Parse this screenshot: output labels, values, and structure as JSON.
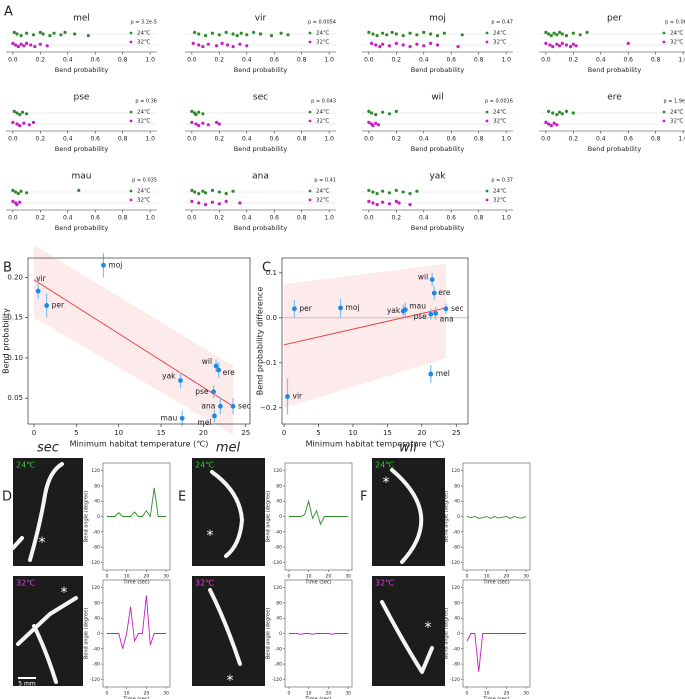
{
  "panel_labels": [
    "A",
    "B",
    "C",
    "D",
    "E",
    "F"
  ],
  "images": [
    {
      "title": "sec",
      "conditions": [
        {
          "label": "24℃",
          "marker": "*"
        },
        {
          "label": "32℃",
          "marker": "*"
        }
      ]
    },
    {
      "title": "mel",
      "conditions": [
        {
          "label": "24℃",
          "marker": "*"
        },
        {
          "label": "32℃",
          "marker": "*"
        }
      ]
    },
    {
      "title": "wil",
      "conditions": [
        {
          "label": "24℃",
          "marker": "*"
        },
        {
          "label": "32℃",
          "marker": "*"
        }
      ]
    }
  ],
  "scale_bar": "5 mm",
  "chart_data": [
    {
      "type": "strip",
      "title": "mel",
      "annotation": "p = 3.2e-5",
      "xlabel": "Bend probability",
      "xlim": [
        -0.05,
        1.05
      ],
      "xticks": [
        {
          "value": 0,
          "label": "0.0"
        },
        0.2,
        0.4,
        0.6,
        0.8,
        {
          "value": 1,
          "label": "1.0"
        }
      ],
      "series": [
        {
          "name": "24℃",
          "color": "#2e8b2e",
          "values": [
            0.01,
            0.03,
            0.06,
            0.1,
            0.15,
            0.2,
            0.22,
            0.27,
            0.3,
            0.35,
            0.38,
            0.45,
            0.55
          ]
        },
        {
          "name": "32℃",
          "color": "#c41ec4",
          "values": [
            0.0,
            0.02,
            0.04,
            0.06,
            0.08,
            0.1,
            0.13,
            0.16,
            0.2,
            0.25
          ]
        }
      ]
    },
    {
      "type": "strip",
      "title": "vir",
      "annotation": "p = 0.0054",
      "xlabel": "Bend probability",
      "xlim": [
        -0.05,
        1.05
      ],
      "xticks": [
        {
          "value": 0,
          "label": "0.0"
        },
        0.2,
        0.4,
        0.6,
        0.8,
        {
          "value": 1,
          "label": "1.0"
        }
      ],
      "series": [
        {
          "name": "24℃",
          "color": "#2e8b2e",
          "values": [
            0.02,
            0.05,
            0.1,
            0.15,
            0.2,
            0.25,
            0.3,
            0.33,
            0.36,
            0.4,
            0.45,
            0.5,
            0.58,
            0.65,
            0.7
          ]
        },
        {
          "name": "32℃",
          "color": "#c41ec4",
          "values": [
            0.01,
            0.05,
            0.08,
            0.12,
            0.18,
            0.22,
            0.26,
            0.3,
            0.35,
            0.4
          ]
        }
      ]
    },
    {
      "type": "strip",
      "title": "moj",
      "annotation": "p = 0.47",
      "xlabel": "Bend probability",
      "xlim": [
        -0.05,
        1.05
      ],
      "xticks": [
        {
          "value": 0,
          "label": "0.0"
        },
        0.2,
        0.4,
        0.6,
        0.8,
        {
          "value": 1,
          "label": "1.0"
        }
      ],
      "series": [
        {
          "name": "24℃",
          "color": "#2e8b2e",
          "values": [
            0.0,
            0.03,
            0.06,
            0.1,
            0.13,
            0.17,
            0.2,
            0.25,
            0.3,
            0.35,
            0.4,
            0.45,
            0.5,
            0.55,
            0.68
          ]
        },
        {
          "name": "32℃",
          "color": "#c41ec4",
          "values": [
            0.02,
            0.05,
            0.08,
            0.1,
            0.15,
            0.2,
            0.25,
            0.3,
            0.35,
            0.4,
            0.45,
            0.5,
            0.65
          ]
        }
      ]
    },
    {
      "type": "strip",
      "title": "per",
      "annotation": "p = 0.066",
      "xlabel": "Bend probability",
      "xlim": [
        -0.05,
        1.05
      ],
      "xticks": [
        {
          "value": 0,
          "label": "0.0"
        },
        0.2,
        0.4,
        0.6,
        0.8,
        {
          "value": 1,
          "label": "1.0"
        }
      ],
      "series": [
        {
          "name": "24℃",
          "color": "#2e8b2e",
          "values": [
            0.0,
            0.02,
            0.04,
            0.06,
            0.08,
            0.1,
            0.12,
            0.15,
            0.2,
            0.25,
            0.3
          ]
        },
        {
          "name": "32℃",
          "color": "#c41ec4",
          "values": [
            0.0,
            0.03,
            0.05,
            0.08,
            0.1,
            0.12,
            0.15,
            0.18,
            0.2,
            0.22,
            0.6
          ]
        }
      ]
    },
    {
      "type": "strip",
      "title": "pse",
      "annotation": "p = 0.36",
      "xlabel": "Bend probability",
      "xlim": [
        -0.05,
        1.05
      ],
      "xticks": [
        {
          "value": 0,
          "label": "0.0"
        },
        0.2,
        0.4,
        0.6,
        0.8,
        {
          "value": 1,
          "label": "1.0"
        }
      ],
      "series": [
        {
          "name": "24℃",
          "color": "#2e8b2e",
          "values": [
            0.01,
            0.03,
            0.05,
            0.07,
            0.1
          ]
        },
        {
          "name": "32℃",
          "color": "#c41ec4",
          "values": [
            0.0,
            0.03,
            0.05,
            0.08,
            0.12,
            0.15
          ]
        }
      ]
    },
    {
      "type": "strip",
      "title": "sec",
      "annotation": "p = 0.043",
      "xlabel": "Bend probability",
      "xlim": [
        -0.05,
        1.05
      ],
      "xticks": [
        {
          "value": 0,
          "label": "0.0"
        },
        0.2,
        0.4,
        0.6,
        0.8,
        {
          "value": 1,
          "label": "1.0"
        }
      ],
      "series": [
        {
          "name": "24℃",
          "color": "#2e8b2e",
          "values": [
            0.0,
            0.02,
            0.03,
            0.05,
            0.08
          ]
        },
        {
          "name": "32℃",
          "color": "#c41ec4",
          "values": [
            0.0,
            0.03,
            0.05,
            0.08,
            0.12,
            0.18,
            0.2
          ]
        }
      ]
    },
    {
      "type": "strip",
      "title": "wil",
      "annotation": "p = 0.0016",
      "xlabel": "Bend probability",
      "xlim": [
        -0.05,
        1.05
      ],
      "xticks": [
        {
          "value": 0,
          "label": "0.0"
        },
        0.2,
        0.4,
        0.6,
        0.8,
        {
          "value": 1,
          "label": "1.0"
        }
      ],
      "series": [
        {
          "name": "24℃",
          "color": "#2e8b2e",
          "values": [
            0.0,
            0.02,
            0.05,
            0.1,
            0.15,
            0.2
          ]
        },
        {
          "name": "32℃",
          "color": "#c41ec4",
          "values": [
            0.0,
            0.02,
            0.03,
            0.05,
            0.07
          ]
        }
      ]
    },
    {
      "type": "strip",
      "title": "ere",
      "annotation": "p = 1.9e-5",
      "xlabel": "Bend probability",
      "xlim": [
        -0.05,
        1.05
      ],
      "xticks": [
        {
          "value": 0,
          "label": "0.0"
        },
        0.2,
        0.4,
        0.6,
        0.8,
        {
          "value": 1,
          "label": "1.0"
        }
      ],
      "series": [
        {
          "name": "24℃",
          "color": "#2e8b2e",
          "values": [
            0.02,
            0.05,
            0.08,
            0.1,
            0.12,
            0.15,
            0.2
          ]
        },
        {
          "name": "32℃",
          "color": "#c41ec4",
          "values": [
            0.0,
            0.02,
            0.04,
            0.06,
            0.08
          ]
        }
      ]
    },
    {
      "type": "strip",
      "title": "mau",
      "annotation": "p = 0.035",
      "xlabel": "Bend probability",
      "xlim": [
        -0.05,
        1.05
      ],
      "xticks": [
        {
          "value": 0,
          "label": "0.0"
        },
        0.2,
        0.4,
        0.6,
        0.8,
        {
          "value": 1,
          "label": "1.0"
        }
      ],
      "series": [
        {
          "name": "24℃",
          "color": "#2e8b2e",
          "values": [
            0.0,
            0.02,
            0.04,
            0.06,
            0.1,
            0.48
          ]
        },
        {
          "name": "32℃",
          "color": "#c41ec4",
          "values": [
            0.0,
            0.02,
            0.03,
            0.05
          ]
        }
      ]
    },
    {
      "type": "strip",
      "title": "ana",
      "annotation": "p = 0.41",
      "xlabel": "Bend probability",
      "xlim": [
        -0.05,
        1.05
      ],
      "xticks": [
        {
          "value": 0,
          "label": "0.0"
        },
        0.2,
        0.4,
        0.6,
        0.8,
        {
          "value": 1,
          "label": "1.0"
        }
      ],
      "series": [
        {
          "name": "24℃",
          "color": "#2e8b2e",
          "values": [
            0.0,
            0.02,
            0.05,
            0.08,
            0.1,
            0.15,
            0.2,
            0.25,
            0.3
          ]
        },
        {
          "name": "32℃",
          "color": "#c41ec4",
          "values": [
            0.0,
            0.05,
            0.1,
            0.15,
            0.2,
            0.25,
            0.35
          ]
        }
      ]
    },
    {
      "type": "strip",
      "title": "yak",
      "annotation": "p = 0.37",
      "xlabel": "Bend probability",
      "xlim": [
        -0.05,
        1.05
      ],
      "xticks": [
        {
          "value": 0,
          "label": "0.0"
        },
        0.2,
        0.4,
        0.6,
        0.8,
        {
          "value": 1,
          "label": "1.0"
        }
      ],
      "series": [
        {
          "name": "24℃",
          "color": "#2e8b2e",
          "values": [
            0.0,
            0.03,
            0.06,
            0.1,
            0.15,
            0.2,
            0.25,
            0.3,
            0.35
          ]
        },
        {
          "name": "32℃",
          "color": "#c41ec4",
          "values": [
            0.0,
            0.03,
            0.06,
            0.1,
            0.15,
            0.2,
            0.22,
            0.3
          ]
        }
      ]
    },
    {
      "type": "scatter",
      "xlabel": "Minimum habitat temperature (℃)",
      "ylabel": "Bend probability",
      "labels": [
        "vir",
        "per",
        "moj",
        "yak",
        "mau",
        "wil",
        "ere",
        "pse",
        "ana",
        "mel",
        "sec"
      ],
      "x": [
        0.5,
        1.5,
        8.2,
        17.3,
        17.5,
        21.5,
        21.8,
        21.2,
        22,
        21.3,
        23.5
      ],
      "values": [
        0.183,
        0.165,
        0.215,
        0.072,
        0.025,
        0.09,
        0.085,
        0.058,
        0.04,
        0.028,
        0.04
      ],
      "errors": [
        0.01,
        0.015,
        0.015,
        0.01,
        0.01,
        0.008,
        0.01,
        0.008,
        0.01,
        0.008,
        0.01
      ],
      "color": "#1e88e5",
      "error_color": "#7fc0f0",
      "fit": {
        "x": [
          0,
          23.5
        ],
        "values": [
          0.197,
          0.04
        ],
        "color": "#e53935"
      },
      "band": {
        "x": [
          0,
          23.5
        ],
        "upper": [
          0.24,
          0.09
        ],
        "lower": [
          0.15,
          0.005
        ],
        "color": "#fdeaea"
      },
      "xlim": [
        -0.7,
        25.5
      ],
      "ylim": [
        0.018,
        0.224
      ],
      "xticks": [
        0,
        5,
        10,
        15,
        20,
        25
      ],
      "yticks": [
        0.05,
        {
          "value": 0.1,
          "label": "0.10"
        },
        0.15,
        {
          "value": 0.2,
          "label": "0.20"
        }
      ]
    },
    {
      "type": "scatter",
      "xlabel": "Minimum habitat temperature (℃)",
      "ylabel": "Bend probability difference",
      "labels": [
        "vir",
        "per",
        "moj",
        "yak",
        "mau",
        "wil",
        "ere",
        "pse",
        "ana",
        "mel",
        "sec"
      ],
      "x": [
        0.5,
        1.5,
        8.2,
        17.3,
        17.6,
        21.5,
        21.8,
        21.3,
        22,
        21.3,
        23.5
      ],
      "values": [
        -0.175,
        0.02,
        0.022,
        0.015,
        0.018,
        0.085,
        0.055,
        0.008,
        0.01,
        -0.125,
        0.02
      ],
      "errors": [
        0.04,
        0.02,
        0.02,
        0.015,
        0.015,
        0.015,
        0.015,
        0.012,
        0.015,
        0.02,
        0.012
      ],
      "color": "#1e88e5",
      "error_color": "#7fc0f0",
      "fit": {
        "x": [
          0,
          23.5
        ],
        "values": [
          -0.06,
          0.022
        ],
        "color": "#e53935"
      },
      "band": {
        "x": [
          0,
          23.5
        ],
        "upper": [
          0.075,
          0.12
        ],
        "lower": [
          -0.2,
          -0.09
        ],
        "color": "#fdeaea"
      },
      "hline": 0,
      "xlim": [
        -0.3,
        26.7
      ],
      "ylim": [
        -0.236,
        0.133
      ],
      "xticks": [
        0,
        5,
        10,
        15,
        20,
        25
      ],
      "yticks": [
        {
          "value": -0.2,
          "label": "−0.2"
        },
        {
          "value": -0.1,
          "label": "−0.1"
        },
        {
          "value": 0,
          "label": "0.0"
        },
        0.1
      ]
    },
    {
      "type": "line",
      "xlabel": "Time (sec)",
      "ylabel": "Bend angle (degree)",
      "color": "#2e8b2e",
      "x": [
        0,
        2,
        4,
        6,
        8,
        10,
        12,
        14,
        16,
        18,
        20,
        22,
        24,
        26,
        28,
        30
      ],
      "values": [
        0,
        0,
        0,
        10,
        0,
        0,
        0,
        12,
        0,
        0,
        15,
        0,
        75,
        0,
        0,
        0
      ],
      "xlim": [
        -2,
        32
      ],
      "ylim": [
        -140,
        140
      ],
      "xticks": [
        0,
        10,
        20,
        30
      ],
      "yticks": [
        -120,
        -80,
        -40,
        0,
        40,
        80,
        120
      ]
    },
    {
      "type": "line",
      "xlabel": "Time (sec)",
      "ylabel": "Bend angle (degree)",
      "color": "#c41ec4",
      "x": [
        0,
        2,
        4,
        6,
        8,
        10,
        12,
        14,
        16,
        18,
        20,
        22,
        24,
        26,
        28,
        30
      ],
      "values": [
        0,
        0,
        0,
        0,
        -40,
        0,
        70,
        -20,
        0,
        0,
        100,
        -30,
        0,
        0,
        0,
        0
      ],
      "xlim": [
        -2,
        32
      ],
      "ylim": [
        -140,
        140
      ],
      "xticks": [
        0,
        10,
        20,
        30
      ],
      "yticks": [
        -120,
        -80,
        -40,
        0,
        40,
        80,
        120
      ]
    },
    {
      "type": "line",
      "xlabel": "Time (sec)",
      "ylabel": "Bend angle (degree)",
      "color": "#2e8b2e",
      "x": [
        0,
        2,
        4,
        6,
        8,
        10,
        12,
        14,
        16,
        18,
        20,
        22,
        24,
        26,
        28,
        30
      ],
      "values": [
        0,
        0,
        0,
        0,
        5,
        40,
        -5,
        15,
        -20,
        0,
        0,
        0,
        0,
        0,
        0,
        0
      ],
      "xlim": [
        -2,
        32
      ],
      "ylim": [
        -140,
        140
      ],
      "xticks": [
        0,
        10,
        20,
        30
      ],
      "yticks": [
        -120,
        -80,
        -40,
        0,
        40,
        80,
        120
      ]
    },
    {
      "type": "line",
      "xlabel": "Time (sec)",
      "ylabel": "Bend angle (degree)",
      "color": "#c41ec4",
      "x": [
        0,
        2,
        4,
        6,
        8,
        10,
        12,
        14,
        16,
        18,
        20,
        22,
        24,
        26,
        28,
        30
      ],
      "values": [
        0,
        0,
        0,
        -2,
        0,
        0,
        -2,
        0,
        0,
        0,
        0,
        -2,
        0,
        0,
        0,
        0
      ],
      "xlim": [
        -2,
        32
      ],
      "ylim": [
        -140,
        140
      ],
      "xticks": [
        0,
        10,
        20,
        30
      ],
      "yticks": [
        -120,
        -80,
        -40,
        0,
        40,
        80,
        120
      ]
    },
    {
      "type": "line",
      "xlabel": "Time (sec)",
      "ylabel": "Bend angle (degree)",
      "color": "#2e8b2e",
      "x": [
        0,
        2,
        4,
        6,
        8,
        10,
        12,
        14,
        16,
        18,
        20,
        22,
        24,
        26,
        28,
        30
      ],
      "values": [
        0,
        -3,
        0,
        -5,
        -3,
        0,
        -5,
        0,
        -4,
        -2,
        0,
        -5,
        0,
        -3,
        -4,
        0
      ],
      "xlim": [
        -2,
        32
      ],
      "ylim": [
        -140,
        140
      ],
      "xticks": [
        0,
        10,
        20,
        30
      ],
      "yticks": [
        -120,
        -80,
        -40,
        0,
        40,
        80,
        120
      ]
    },
    {
      "type": "line",
      "xlabel": "Time (sec)",
      "ylabel": "Bend angle (degree)",
      "color": "#c41ec4",
      "x": [
        0,
        2,
        4,
        6,
        8,
        10,
        12,
        14,
        16,
        18,
        20,
        22,
        24,
        26,
        28,
        30
      ],
      "values": [
        -20,
        0,
        0,
        -100,
        0,
        0,
        0,
        0,
        0,
        0,
        0,
        0,
        0,
        0,
        0,
        0
      ],
      "xlim": [
        -2,
        32
      ],
      "ylim": [
        -140,
        140
      ],
      "xticks": [
        0,
        10,
        20,
        30
      ],
      "yticks": [
        -120,
        -80,
        -40,
        0,
        40,
        80,
        120
      ]
    }
  ]
}
